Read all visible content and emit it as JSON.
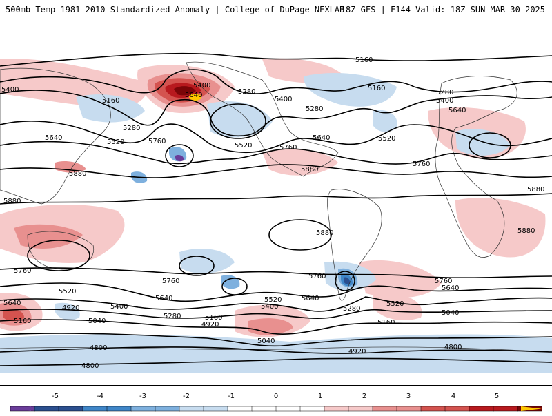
{
  "header": {
    "title": "500mb Temp 1981-2010 Standardized Anomaly | College of DuPage NEXLAB",
    "run_info": "18Z GFS | F144 Valid: 18Z SUN MAR 30 2025"
  },
  "colors": {
    "neg5": "#6a3d9a",
    "neg4": "#2b4f8f",
    "neg3": "#3f86c8",
    "neg2": "#7eb0de",
    "neg1": "#c7dcef",
    "zero": "#ffffff",
    "pos1": "#f6c9c9",
    "pos2": "#e8908f",
    "pos3": "#d4534f",
    "pos4": "#b8191e",
    "pos5": "#7a0508",
    "max": "#ffc800"
  },
  "colorbar": {
    "ticks": [
      "-5",
      "-4",
      "-3",
      "-2",
      "-1",
      "0",
      "1",
      "2",
      "3",
      "4",
      "5"
    ]
  },
  "contour_labels": [
    {
      "id": "c1",
      "text": "5160"
    },
    {
      "id": "c2",
      "text": "5400"
    },
    {
      "id": "c3",
      "text": "5160"
    },
    {
      "id": "c4",
      "text": "5280"
    },
    {
      "id": "c5",
      "text": "5640"
    },
    {
      "id": "c6",
      "text": "5520"
    },
    {
      "id": "c7",
      "text": "5760"
    },
    {
      "id": "c8",
      "text": "5400"
    },
    {
      "id": "c9",
      "text": "5640"
    },
    {
      "id": "c10",
      "text": "5280"
    },
    {
      "id": "c11",
      "text": "5400"
    },
    {
      "id": "c12",
      "text": "5280"
    },
    {
      "id": "c13",
      "text": "5520"
    },
    {
      "id": "c14",
      "text": "5760"
    },
    {
      "id": "c15",
      "text": "5640"
    },
    {
      "id": "c16",
      "text": "5160"
    },
    {
      "id": "c17",
      "text": "5160"
    },
    {
      "id": "c18",
      "text": "5520"
    },
    {
      "id": "c19",
      "text": "5280"
    },
    {
      "id": "c20",
      "text": "5400"
    },
    {
      "id": "c21",
      "text": "5640"
    },
    {
      "id": "c22",
      "text": "5760"
    },
    {
      "id": "c23",
      "text": "5880"
    },
    {
      "id": "c24",
      "text": "5880"
    },
    {
      "id": "c25",
      "text": "5880"
    },
    {
      "id": "c26",
      "text": "5880"
    },
    {
      "id": "c27",
      "text": "5880"
    },
    {
      "id": "c28",
      "text": "5880"
    },
    {
      "id": "c29",
      "text": "5760"
    },
    {
      "id": "c30",
      "text": "5760"
    },
    {
      "id": "c31",
      "text": "5640"
    },
    {
      "id": "c32",
      "text": "5520"
    },
    {
      "id": "c33",
      "text": "5400"
    },
    {
      "id": "c34",
      "text": "5640"
    },
    {
      "id": "c35",
      "text": "5160"
    },
    {
      "id": "c36",
      "text": "4920"
    },
    {
      "id": "c37",
      "text": "5040"
    },
    {
      "id": "c38",
      "text": "5280"
    },
    {
      "id": "c39",
      "text": "5160"
    },
    {
      "id": "c40",
      "text": "4920"
    },
    {
      "id": "c41",
      "text": "5520"
    },
    {
      "id": "c42",
      "text": "5400"
    },
    {
      "id": "c43",
      "text": "5640"
    },
    {
      "id": "c44",
      "text": "5760"
    },
    {
      "id": "c45",
      "text": "5280"
    },
    {
      "id": "c46",
      "text": "5040"
    },
    {
      "id": "c47",
      "text": "4920"
    },
    {
      "id": "c48",
      "text": "5520"
    },
    {
      "id": "c49",
      "text": "5160"
    },
    {
      "id": "c50",
      "text": "5040"
    },
    {
      "id": "c51",
      "text": "5640"
    },
    {
      "id": "c52",
      "text": "5760"
    },
    {
      "id": "c53",
      "text": "4800"
    },
    {
      "id": "c54",
      "text": "4800"
    },
    {
      "id": "c55",
      "text": "4800"
    }
  ]
}
